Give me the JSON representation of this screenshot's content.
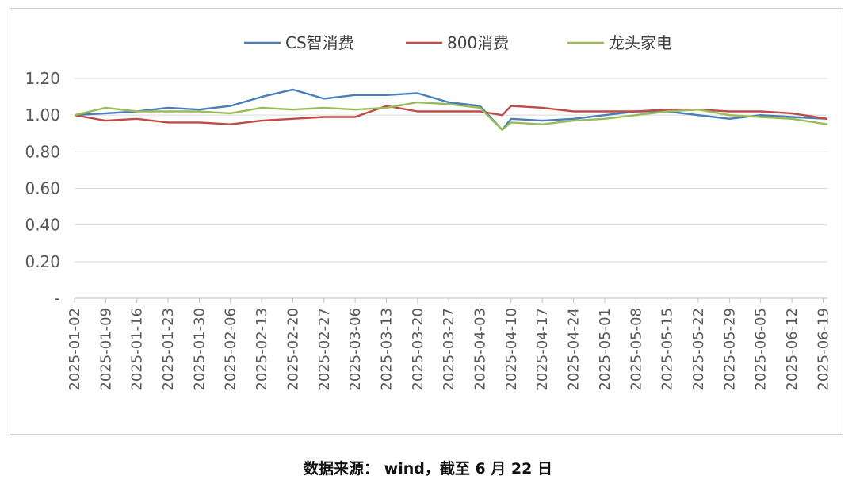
{
  "caption": "数据来源： wind，截至 6 月 22 日",
  "chart_data": {
    "type": "line",
    "title": "",
    "xlabel": "",
    "ylabel": "",
    "ylim": [
      0,
      1.2
    ],
    "y_ticks": [
      "-",
      "0.20",
      "0.40",
      "0.60",
      "0.80",
      "1.00",
      "1.20"
    ],
    "grid": true,
    "legend_position": "top-center",
    "x_tick_labels": [
      "2025-01-02",
      "2025-01-09",
      "2025-01-16",
      "2025-01-23",
      "2025-01-30",
      "2025-02-06",
      "2025-02-13",
      "2025-02-20",
      "2025-02-27",
      "2025-03-06",
      "2025-03-13",
      "2025-03-20",
      "2025-03-27",
      "2025-04-03",
      "2025-04-10",
      "2025-04-17",
      "2025-04-24",
      "2025-05-01",
      "2025-05-08",
      "2025-05-15",
      "2025-05-22",
      "2025-05-29",
      "2025-06-05",
      "2025-06-12",
      "2025-06-19"
    ],
    "x": [
      "2025-01-02",
      "2025-01-09",
      "2025-01-16",
      "2025-01-23",
      "2025-01-30",
      "2025-02-06",
      "2025-02-13",
      "2025-02-20",
      "2025-02-27",
      "2025-03-06",
      "2025-03-13",
      "2025-03-20",
      "2025-03-27",
      "2025-04-03",
      "2025-04-08",
      "2025-04-10",
      "2025-04-17",
      "2025-04-24",
      "2025-05-01",
      "2025-05-08",
      "2025-05-15",
      "2025-05-22",
      "2025-05-29",
      "2025-06-05",
      "2025-06-12",
      "2025-06-20"
    ],
    "series": [
      {
        "name": "CS智消费",
        "color": "#4a7ebb",
        "values": [
          1.0,
          1.01,
          1.02,
          1.04,
          1.03,
          1.05,
          1.1,
          1.14,
          1.09,
          1.11,
          1.11,
          1.12,
          1.07,
          1.05,
          0.92,
          0.98,
          0.97,
          0.98,
          1.0,
          1.02,
          1.02,
          1.0,
          0.98,
          1.0,
          0.99,
          0.98
        ]
      },
      {
        "name": "800消费",
        "color": "#be4b48",
        "values": [
          1.0,
          0.97,
          0.98,
          0.96,
          0.96,
          0.95,
          0.97,
          0.98,
          0.99,
          0.99,
          1.05,
          1.02,
          1.02,
          1.02,
          1.0,
          1.05,
          1.04,
          1.02,
          1.02,
          1.02,
          1.03,
          1.03,
          1.02,
          1.02,
          1.01,
          0.98
        ]
      },
      {
        "name": "龙头家电",
        "color": "#9bbb59",
        "values": [
          1.0,
          1.04,
          1.02,
          1.02,
          1.02,
          1.01,
          1.04,
          1.03,
          1.04,
          1.03,
          1.04,
          1.07,
          1.06,
          1.04,
          0.92,
          0.96,
          0.95,
          0.97,
          0.98,
          1.0,
          1.02,
          1.03,
          1.0,
          0.99,
          0.98,
          0.95
        ]
      }
    ]
  }
}
